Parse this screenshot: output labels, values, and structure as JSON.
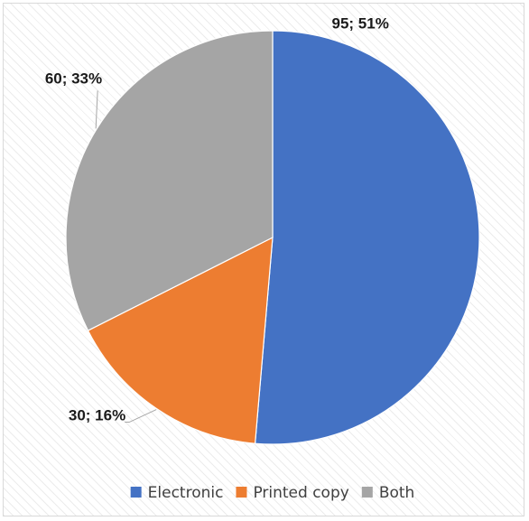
{
  "chart_data": {
    "type": "pie",
    "title": "",
    "start_angle_deg": 0,
    "direction": "clockwise",
    "legend_position": "bottom",
    "slices": [
      {
        "name": "Electronic",
        "value": 95,
        "percent": 51,
        "label": "95; 51%",
        "color": "#4472c4"
      },
      {
        "name": "Printed copy",
        "value": 30,
        "percent": 16,
        "label": "30; 16%",
        "color": "#ed7d31"
      },
      {
        "name": "Both",
        "value": 60,
        "percent": 33,
        "label": "60; 33%",
        "color": "#a5a5a5"
      }
    ]
  }
}
